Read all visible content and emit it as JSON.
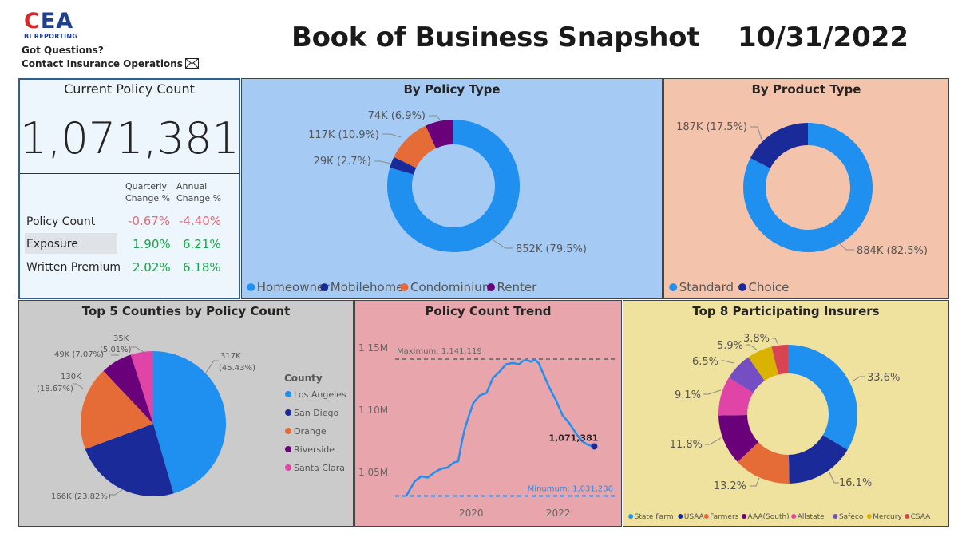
{
  "header": {
    "logo_text_c": "C",
    "logo_text_ea": "EA",
    "logo_sub": "BI REPORTING",
    "questions_line1": "Got Questions?",
    "questions_line2": "Contact Insurance Operations",
    "title": "Book of Business Snapshot",
    "date": "10/31/2022"
  },
  "current_policy": {
    "title": "Current Policy Count",
    "count": "1,071,381",
    "col1_line1": "Quarterly",
    "col1_line2": "Change %",
    "col2_line1": "Annual",
    "col2_line2": "Change %",
    "rows": [
      {
        "label": "Policy Count",
        "quarterly": "-0.67%",
        "annual": "-4.40%"
      },
      {
        "label": "Exposure",
        "quarterly": "1.90%",
        "annual": "6.21%"
      },
      {
        "label": "Written Premium",
        "quarterly": "2.02%",
        "annual": "6.18%"
      }
    ]
  },
  "colors": {
    "blue": "#1f8ff0",
    "navy": "#1b2a99",
    "orange": "#e66c37",
    "purple": "#6b007b",
    "pink": "#e044a7",
    "violet": "#744ec2",
    "gold": "#d9b300",
    "red": "#d64550",
    "negative": "#e06a78",
    "positive": "#1aa64a"
  },
  "chart_data": [
    {
      "id": "policy_type",
      "type": "pie",
      "donut": true,
      "title": "By Policy Type",
      "slices": [
        {
          "name": "Homeowner",
          "value": 852,
          "label": "852K (79.5%)",
          "color": "#1f8ff0"
        },
        {
          "name": "Mobilehome",
          "value": 29,
          "label": "29K (2.7%)",
          "color": "#1b2a99"
        },
        {
          "name": "Condominium",
          "value": 117,
          "label": "117K (10.9%)",
          "color": "#e66c37"
        },
        {
          "name": "Renter",
          "value": 74,
          "label": "74K (6.9%)",
          "color": "#6b007b"
        }
      ],
      "legend": [
        "Homeowner",
        "Mobilehome",
        "Condominium",
        "Renter"
      ]
    },
    {
      "id": "product_type",
      "type": "pie",
      "donut": true,
      "title": "By Product Type",
      "slices": [
        {
          "name": "Standard",
          "value": 884,
          "label": "884K (82.5%)",
          "color": "#1f8ff0"
        },
        {
          "name": "Choice",
          "value": 187,
          "label": "187K (17.5%)",
          "color": "#1b2a99"
        }
      ],
      "legend": [
        "Standard",
        "Choice"
      ]
    },
    {
      "id": "counties",
      "type": "pie",
      "donut": false,
      "title": "Top 5 Counties by Policy Count",
      "legend_title": "County",
      "slices": [
        {
          "name": "Los Angeles",
          "value": 317,
          "label1": "317K",
          "label2": "(45.43%)",
          "color": "#1f8ff0"
        },
        {
          "name": "San Diego",
          "value": 166,
          "label1": "166K (23.82%)",
          "label2": "",
          "color": "#1b2a99"
        },
        {
          "name": "Orange",
          "value": 130,
          "label1": "130K",
          "label2": "(18.67%)",
          "color": "#e66c37"
        },
        {
          "name": "Riverside",
          "value": 49,
          "label1": "49K (7.07%)",
          "label2": "",
          "color": "#6b007b"
        },
        {
          "name": "Santa Clara",
          "value": 35,
          "label1": "35K",
          "label2": "(5.01%)",
          "color": "#e044a7"
        }
      ]
    },
    {
      "id": "trend",
      "type": "line",
      "title": "Policy Count Trend",
      "yticks": [
        "1.15M",
        "1.10M",
        "1.05M"
      ],
      "ytick_values": [
        1.15,
        1.1,
        1.05
      ],
      "xticks": [
        "2020",
        "2022"
      ],
      "xtick_values": [
        2020,
        2022
      ],
      "ylim": [
        1.02,
        1.17
      ],
      "xlim": [
        2018.25,
        2023.3
      ],
      "max_label": "Maximum: 1,141,119",
      "max_value": 1.141119,
      "min_label": "Minumum: 1,031,236",
      "min_value": 1.031236,
      "last_label": "1,071,381",
      "series": [
        {
          "name": "Policy Count",
          "x": [
            2018.5,
            2018.7,
            2018.85,
            2019.0,
            2019.15,
            2019.3,
            2019.45,
            2019.6,
            2019.7,
            2019.78,
            2019.85,
            2019.95,
            2020.05,
            2020.2,
            2020.35,
            2020.5,
            2020.65,
            2020.8,
            2020.95,
            2021.1,
            2021.2,
            2021.3,
            2021.38,
            2021.45,
            2021.55,
            2021.65,
            2021.8,
            2021.95,
            2022.1,
            2022.25,
            2022.4,
            2022.55,
            2022.7,
            2022.83
          ],
          "y": [
            1.031,
            1.043,
            1.047,
            1.046,
            1.05,
            1.053,
            1.054,
            1.058,
            1.059,
            1.074,
            1.085,
            1.096,
            1.106,
            1.112,
            1.114,
            1.126,
            1.131,
            1.137,
            1.138,
            1.137,
            1.14,
            1.14,
            1.139,
            1.141,
            1.138,
            1.13,
            1.118,
            1.108,
            1.096,
            1.09,
            1.082,
            1.075,
            1.072,
            1.071
          ]
        }
      ]
    },
    {
      "id": "insurers",
      "type": "pie",
      "donut": true,
      "title": "Top 8 Participating Insurers",
      "slices": [
        {
          "name": "State Farm",
          "value": 33.6,
          "label": "33.6%",
          "color": "#1f8ff0"
        },
        {
          "name": "USAA",
          "value": 16.1,
          "label": "16.1%",
          "color": "#1b2a99"
        },
        {
          "name": "Farmers",
          "value": 13.2,
          "label": "13.2%",
          "color": "#e66c37"
        },
        {
          "name": "AAA(South)",
          "value": 11.8,
          "label": "11.8%",
          "color": "#6b007b"
        },
        {
          "name": "Allstate",
          "value": 9.1,
          "label": "9.1%",
          "color": "#e044a7"
        },
        {
          "name": "Safeco",
          "value": 6.5,
          "label": "6.5%",
          "color": "#744ec2"
        },
        {
          "name": "Mercury",
          "value": 5.9,
          "label": "5.9%",
          "color": "#d9b300"
        },
        {
          "name": "CSAA",
          "value": 3.8,
          "label": "3.8%",
          "color": "#d64550"
        }
      ],
      "legend": [
        "State Farm",
        "USAA",
        "Farmers",
        "AAA(South)",
        "Allstate",
        "Safeco",
        "Mercury",
        "CSAA"
      ]
    }
  ]
}
